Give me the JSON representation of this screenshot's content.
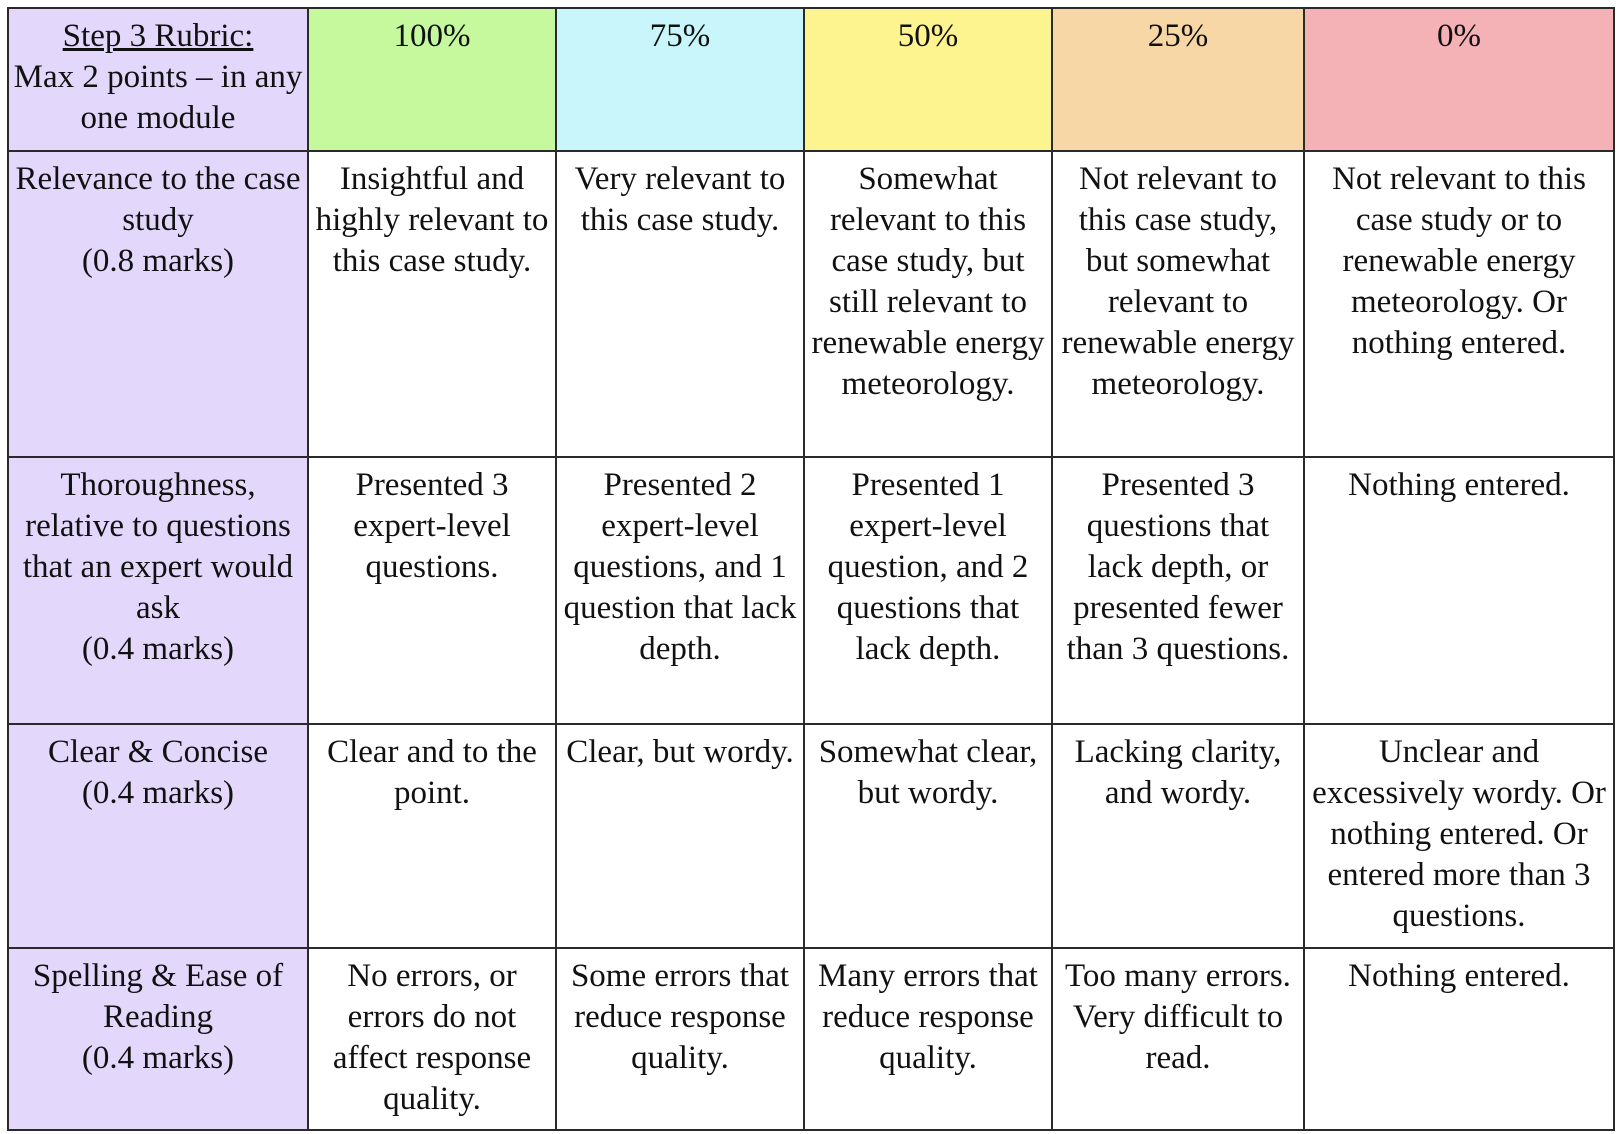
{
  "rubric": {
    "title_line1": "Step 3 Rubric:",
    "title_line2": "Max 2 points – in any one module",
    "levels": [
      {
        "label": "100%",
        "color": "#c6f89e"
      },
      {
        "label": "75%",
        "color": "#c8f6fa"
      },
      {
        "label": "50%",
        "color": "#fdf38f"
      },
      {
        "label": "25%",
        "color": "#f8d7a6"
      },
      {
        "label": "0%",
        "color": "#f4b2b6"
      }
    ],
    "criteria_bg_color": "#e3d7fb",
    "rows": [
      {
        "criterion": "Relevance to the case study",
        "marks": "(0.8 marks)",
        "cells": [
          "Insightful and highly relevant to this case study.",
          "Very relevant to this case study.",
          "Somewhat relevant to this case study, but still relevant to renewable energy meteorology.",
          "Not relevant to this case study, but somewhat relevant to renewable energy meteorology.",
          "Not relevant to this case study or to renewable energy meteorology. Or nothing entered."
        ]
      },
      {
        "criterion": "Thoroughness, relative to questions that an expert would ask",
        "marks": "(0.4 marks)",
        "cells": [
          "Presented 3 expert-level questions.",
          "Presented 2 expert-level questions, and 1 question that lack depth.",
          "Presented 1 expert-level question, and 2 questions that lack depth.",
          "Presented 3 questions that lack depth, or presented fewer than 3 questions.",
          "Nothing entered."
        ]
      },
      {
        "criterion": "Clear & Concise",
        "marks": "(0.4 marks)",
        "cells": [
          "Clear and to the point.",
          "Clear, but wordy.",
          "Somewhat clear, but wordy.",
          "Lacking clarity, and wordy.",
          "Unclear and excessively wordy. Or nothing entered. Or entered more than 3 questions."
        ]
      },
      {
        "criterion": "Spelling & Ease of Reading",
        "marks": "(0.4 marks)",
        "cells": [
          "No errors, or errors do not affect response quality.",
          "Some errors that reduce response quality.",
          "Many errors that reduce response quality.",
          "Too many errors. Very difficult to read.",
          "Nothing entered."
        ]
      }
    ]
  }
}
